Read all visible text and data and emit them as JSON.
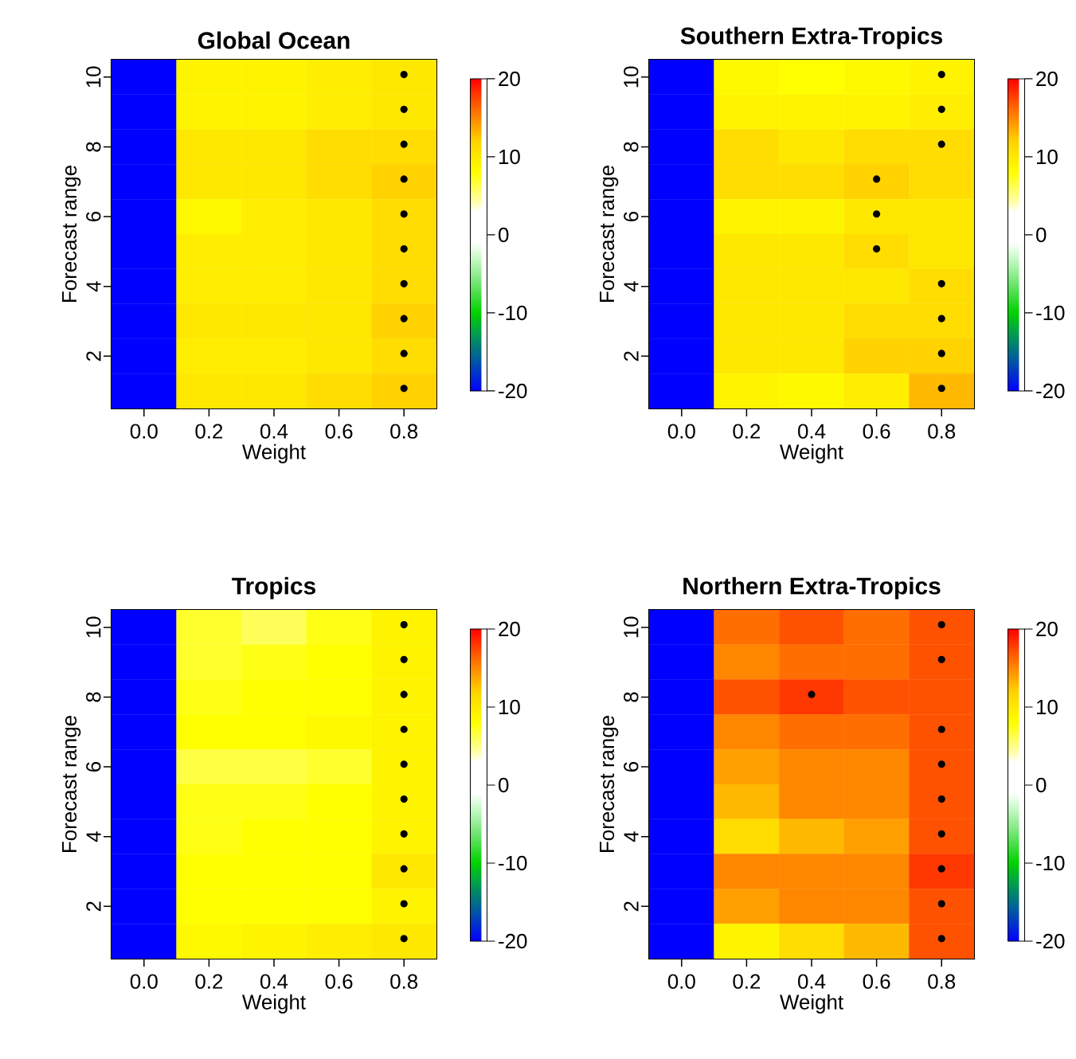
{
  "chart_data": [
    {
      "type": "heatmap",
      "title": "Global Ocean",
      "xlabel": "Weight",
      "ylabel": "Forecast range",
      "categories": [
        "0.0",
        "0.2",
        "0.4",
        "0.6",
        "0.8"
      ],
      "y_categories": [
        "10",
        null,
        "8",
        null,
        "6",
        null,
        "4",
        null,
        "2",
        null
      ],
      "cells": [
        [
          -20,
          9,
          9,
          9.5,
          10
        ],
        [
          -20,
          9,
          9,
          9.5,
          10
        ],
        [
          -20,
          10,
          10,
          11,
          11
        ],
        [
          -20,
          10,
          10,
          11,
          12
        ],
        [
          -20,
          8.5,
          9.5,
          10,
          11
        ],
        [
          -20,
          9.5,
          9.5,
          10,
          11
        ],
        [
          -20,
          9.5,
          9.5,
          10,
          11
        ],
        [
          -20,
          10,
          10,
          10,
          12
        ],
        [
          -20,
          9.5,
          9.5,
          10,
          11
        ],
        [
          -20,
          10,
          10,
          11,
          12
        ]
      ],
      "cell_labels": [
        [
          null,
          null,
          null,
          null,
          "•"
        ],
        [
          null,
          null,
          null,
          null,
          "•"
        ],
        [
          null,
          null,
          null,
          null,
          "•"
        ],
        [
          null,
          null,
          null,
          null,
          "•"
        ],
        [
          null,
          null,
          null,
          null,
          "•"
        ],
        [
          null,
          null,
          null,
          null,
          "•"
        ],
        [
          null,
          null,
          null,
          null,
          "•"
        ],
        [
          null,
          null,
          null,
          null,
          "•"
        ],
        [
          null,
          null,
          null,
          null,
          "•"
        ],
        [
          null,
          null,
          null,
          null,
          "•"
        ]
      ],
      "clim": [
        -20,
        20
      ],
      "cticks": [
        -20,
        -10,
        0,
        10,
        20
      ]
    },
    {
      "type": "heatmap",
      "title": "Southern Extra-Tropics",
      "xlabel": "Weight",
      "ylabel": "Forecast range",
      "categories": [
        "0.0",
        "0.2",
        "0.4",
        "0.6",
        "0.8"
      ],
      "y_categories": [
        "10",
        null,
        "8",
        null,
        "6",
        null,
        "4",
        null,
        "2",
        null
      ],
      "cells": [
        [
          -20,
          8.5,
          8,
          8.5,
          9
        ],
        [
          -20,
          9,
          9,
          9,
          9.5
        ],
        [
          -20,
          11,
          10,
          11,
          11
        ],
        [
          -20,
          11,
          11,
          12,
          11
        ],
        [
          -20,
          9,
          9,
          10,
          10
        ],
        [
          -20,
          10,
          10,
          11,
          10
        ],
        [
          -20,
          10,
          10,
          10,
          11
        ],
        [
          -20,
          10,
          10,
          11,
          11
        ],
        [
          -20,
          10,
          10,
          12,
          12
        ],
        [
          -20,
          9,
          8.5,
          9.5,
          13
        ]
      ],
      "cell_labels": [
        [
          null,
          null,
          null,
          null,
          "•"
        ],
        [
          null,
          null,
          null,
          null,
          "•"
        ],
        [
          null,
          null,
          null,
          null,
          "•"
        ],
        [
          null,
          null,
          null,
          "•",
          null
        ],
        [
          null,
          null,
          null,
          "•",
          null
        ],
        [
          null,
          null,
          null,
          "•",
          null
        ],
        [
          null,
          null,
          null,
          null,
          "•"
        ],
        [
          null,
          null,
          null,
          null,
          "•"
        ],
        [
          null,
          null,
          null,
          null,
          "•"
        ],
        [
          null,
          null,
          null,
          null,
          "•"
        ]
      ],
      "clim": [
        -20,
        20
      ],
      "cticks": [
        -20,
        -10,
        0,
        10,
        20
      ]
    },
    {
      "type": "heatmap",
      "title": "Tropics",
      "xlabel": "Weight",
      "ylabel": "Forecast range",
      "categories": [
        "0.0",
        "0.2",
        "0.4",
        "0.6",
        "0.8"
      ],
      "y_categories": [
        "10",
        null,
        "8",
        null,
        "6",
        null,
        "4",
        null,
        "2",
        null
      ],
      "cells": [
        [
          -20,
          7,
          6,
          7.5,
          9
        ],
        [
          -20,
          7,
          7.5,
          8,
          9
        ],
        [
          -20,
          7.5,
          8,
          8,
          9
        ],
        [
          -20,
          8,
          8,
          8.5,
          9
        ],
        [
          -20,
          6.5,
          6.5,
          7,
          9
        ],
        [
          -20,
          7.5,
          7.5,
          8,
          9
        ],
        [
          -20,
          7.5,
          8,
          8,
          9
        ],
        [
          -20,
          8,
          8,
          8,
          10
        ],
        [
          -20,
          8,
          8,
          8,
          9
        ],
        [
          -20,
          8.5,
          9,
          9.5,
          10
        ]
      ],
      "cell_labels": [
        [
          null,
          null,
          null,
          null,
          "•"
        ],
        [
          null,
          null,
          null,
          null,
          "•"
        ],
        [
          null,
          null,
          null,
          null,
          "•"
        ],
        [
          null,
          null,
          null,
          null,
          "•"
        ],
        [
          null,
          null,
          null,
          null,
          "•"
        ],
        [
          null,
          null,
          null,
          null,
          "•"
        ],
        [
          null,
          null,
          null,
          null,
          "•"
        ],
        [
          null,
          null,
          null,
          null,
          "•"
        ],
        [
          null,
          null,
          null,
          null,
          "•"
        ],
        [
          null,
          null,
          null,
          null,
          "•"
        ]
      ],
      "clim": [
        -20,
        20
      ],
      "cticks": [
        -20,
        -10,
        0,
        10,
        20
      ]
    },
    {
      "type": "heatmap",
      "title": "Northern Extra-Tropics",
      "xlabel": "Weight",
      "ylabel": "Forecast range",
      "categories": [
        "0.0",
        "0.2",
        "0.4",
        "0.6",
        "0.8"
      ],
      "y_categories": [
        "10",
        null,
        "8",
        null,
        "6",
        null,
        "4",
        null,
        "2",
        null
      ],
      "cells": [
        [
          -20,
          16,
          17,
          16,
          17
        ],
        [
          -20,
          15,
          16,
          16,
          17
        ],
        [
          -20,
          17,
          18,
          17,
          17
        ],
        [
          -20,
          15,
          16,
          16,
          17
        ],
        [
          -20,
          14,
          15,
          15,
          17
        ],
        [
          -20,
          13,
          15,
          15,
          17
        ],
        [
          -20,
          11,
          13,
          14,
          17
        ],
        [
          -20,
          15,
          15,
          15,
          18
        ],
        [
          -20,
          14,
          15,
          15,
          17
        ],
        [
          -20,
          9,
          11,
          13,
          17
        ]
      ],
      "cell_labels": [
        [
          null,
          null,
          null,
          null,
          "•"
        ],
        [
          null,
          null,
          null,
          null,
          "•"
        ],
        [
          null,
          null,
          "•",
          null,
          null
        ],
        [
          null,
          null,
          null,
          null,
          "•"
        ],
        [
          null,
          null,
          null,
          null,
          "•"
        ],
        [
          null,
          null,
          null,
          null,
          "•"
        ],
        [
          null,
          null,
          null,
          null,
          "•"
        ],
        [
          null,
          null,
          null,
          null,
          "•"
        ],
        [
          null,
          null,
          null,
          null,
          "•"
        ],
        [
          null,
          null,
          null,
          null,
          "•"
        ]
      ],
      "clim": [
        -20,
        20
      ],
      "cticks": [
        -20,
        -10,
        0,
        10,
        20
      ]
    }
  ]
}
